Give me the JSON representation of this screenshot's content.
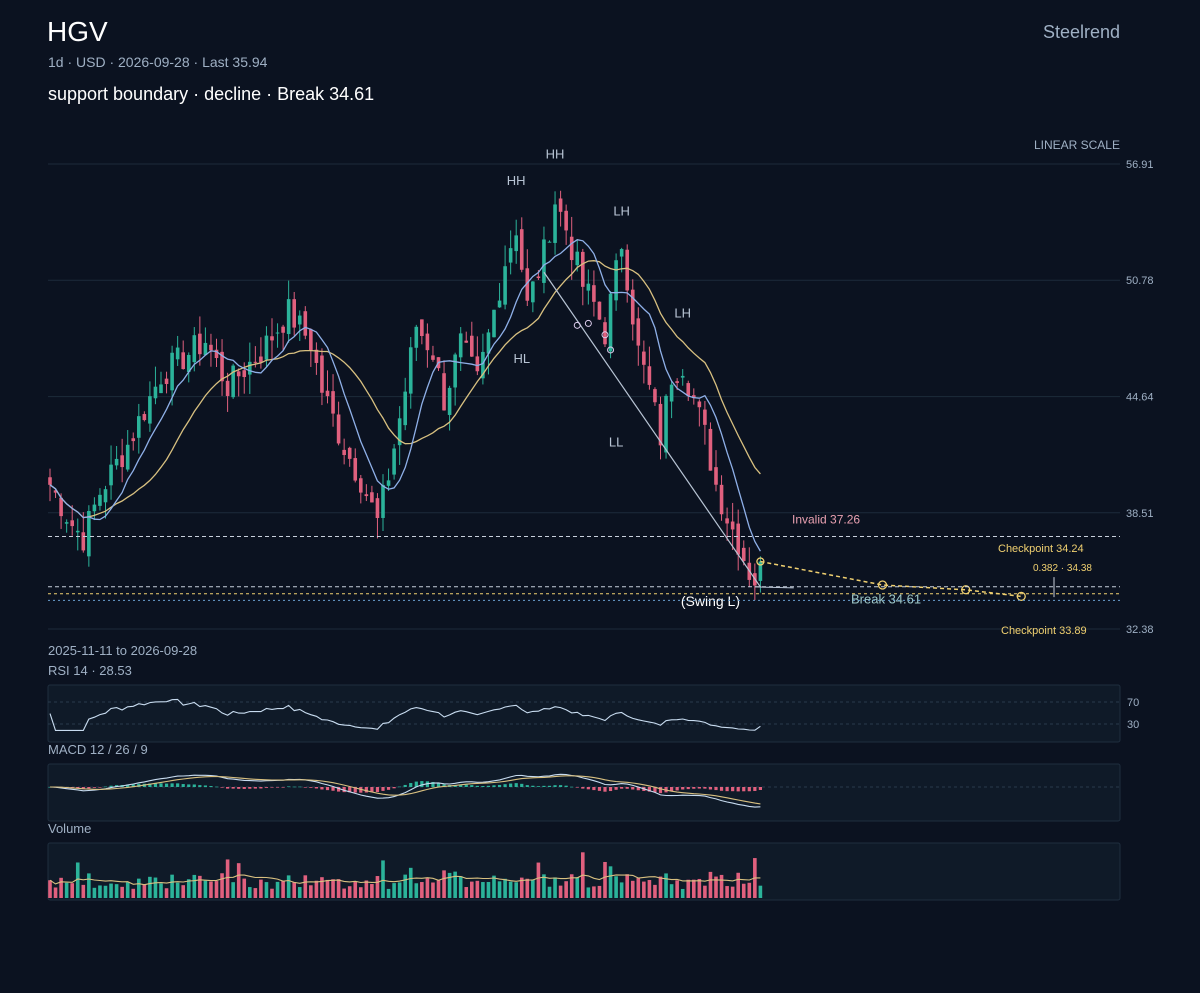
{
  "header": {
    "ticker": "HGV",
    "meta": "1d · USD · 2026-09-28 · Last 35.94",
    "subtitle": "support boundary · decline · Break 34.61",
    "brand": "Steelrend",
    "scale": "LINEAR SCALE",
    "range": "2025-11-11 to 2026-09-28"
  },
  "colors": {
    "background": "#0b1220",
    "up": "#2bb39a",
    "down": "#e0607e",
    "ma_fast": "#8fb0e8",
    "ma_slow": "#d8c080",
    "projection": "#f0d070",
    "invalid": "#e8a0b0"
  },
  "chart_data": {
    "type": "candlestick",
    "y_axis": {
      "ticks": [
        "56.91",
        "50.78",
        "44.64",
        "38.51",
        "32.38"
      ],
      "range": [
        32.38,
        56.91
      ]
    },
    "levels": {
      "invalid_label": "Invalid 37.26",
      "invalid": 37.26,
      "break_label": "Break 34.61",
      "break": 34.61,
      "checkpoint_upper_label": "Checkpoint 34.24",
      "checkpoint_upper": 34.24,
      "checkpoint_lower_label": "Checkpoint 33.89",
      "checkpoint_lower": 33.89,
      "fib_label": "0.382 · 34.38",
      "fib": 34.38,
      "last": 35.94
    },
    "swing_labels": [
      {
        "text": "HH",
        "bar": 84,
        "price": 55.8
      },
      {
        "text": "HH",
        "bar": 91,
        "price": 57.2
      },
      {
        "text": "LH",
        "bar": 103,
        "price": 54.2
      },
      {
        "text": "HL",
        "bar": 85,
        "price": 46.4
      },
      {
        "text": "LL",
        "bar": 102,
        "price": 42.0
      },
      {
        "text": "LH",
        "bar": 114,
        "price": 48.8
      },
      {
        "text": "(Swing L)",
        "bar": 119,
        "price": 33.6
      }
    ],
    "anchors": [
      {
        "t": 0,
        "p": 40.0
      },
      {
        "t": 4,
        "p": 37.9
      },
      {
        "t": 6,
        "p": 37.2
      },
      {
        "t": 9,
        "p": 39.6
      },
      {
        "t": 14,
        "p": 42.1
      },
      {
        "t": 20,
        "p": 45.8
      },
      {
        "t": 28,
        "p": 47.6
      },
      {
        "t": 32,
        "p": 45.2
      },
      {
        "t": 38,
        "p": 47.0
      },
      {
        "t": 43,
        "p": 49.1
      },
      {
        "t": 47,
        "p": 47.5
      },
      {
        "t": 49,
        "p": 45.0
      },
      {
        "t": 53,
        "p": 42.0
      },
      {
        "t": 56,
        "p": 40.3
      },
      {
        "t": 59,
        "p": 38.0
      },
      {
        "t": 61,
        "p": 40.5
      },
      {
        "t": 64,
        "p": 45.0
      },
      {
        "t": 66,
        "p": 48.4
      },
      {
        "t": 69,
        "p": 47.0
      },
      {
        "t": 71,
        "p": 44.5
      },
      {
        "t": 74,
        "p": 47.4
      },
      {
        "t": 77,
        "p": 45.4
      },
      {
        "t": 79,
        "p": 47.8
      },
      {
        "t": 82,
        "p": 51.8
      },
      {
        "t": 84,
        "p": 53.6
      },
      {
        "t": 86,
        "p": 49.4
      },
      {
        "t": 89,
        "p": 52.2
      },
      {
        "t": 91,
        "p": 55.0
      },
      {
        "t": 93,
        "p": 53.5
      },
      {
        "t": 96,
        "p": 50.5
      },
      {
        "t": 98,
        "p": 49.5
      },
      {
        "t": 100,
        "p": 48.0
      },
      {
        "t": 103,
        "p": 52.8
      },
      {
        "t": 104,
        "p": 51.0
      },
      {
        "t": 106,
        "p": 47.0
      },
      {
        "t": 108,
        "p": 45.0
      },
      {
        "t": 110,
        "p": 42.5
      },
      {
        "t": 112,
        "p": 45.8
      },
      {
        "t": 114,
        "p": 46.4
      },
      {
        "t": 116,
        "p": 44.5
      },
      {
        "t": 118,
        "p": 42.6
      },
      {
        "t": 120,
        "p": 40.0
      },
      {
        "t": 122,
        "p": 38.3
      },
      {
        "t": 124,
        "p": 37.0
      },
      {
        "t": 126,
        "p": 35.4
      },
      {
        "t": 127,
        "p": 35.0
      },
      {
        "t": 128,
        "p": 35.94
      }
    ],
    "projection": [
      {
        "t": 128,
        "p": 35.94
      },
      {
        "t": 150,
        "p": 34.7
      },
      {
        "t": 165,
        "p": 34.45
      },
      {
        "t": 175,
        "p": 34.1
      }
    ],
    "rsi": {
      "label": "RSI 14 · 28.53",
      "value": 28.53,
      "levels": [
        "70",
        "30"
      ]
    },
    "macd": {
      "label": "MACD 12 / 26 / 9"
    },
    "volume": {
      "label": "Volume"
    }
  }
}
